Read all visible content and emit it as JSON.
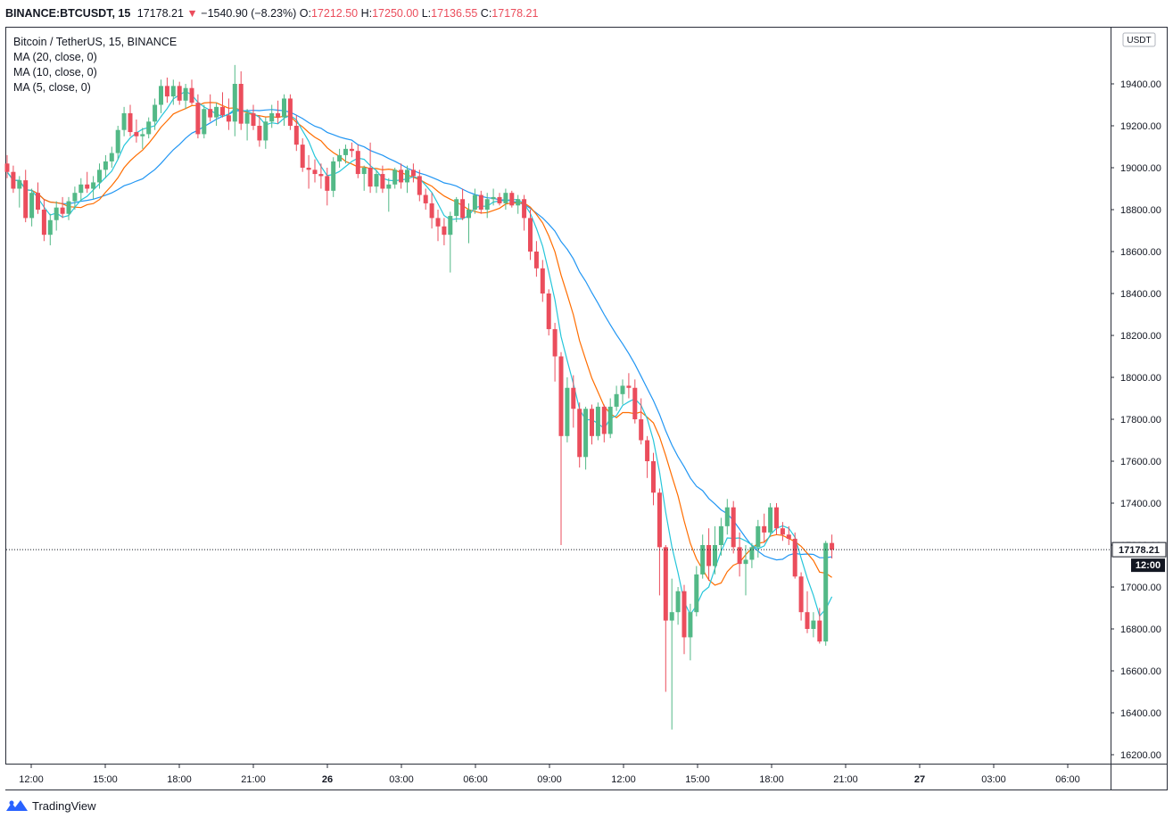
{
  "header": {
    "symbol": "BINANCE:BTCUSDT, 15",
    "last": "17178.21",
    "arrow": "▼",
    "change": "−1540.90 (−8.23%)",
    "o_label": "O:",
    "o_value": "17212.50",
    "h_label": "H:",
    "h_value": "17250.00",
    "l_label": "L:",
    "l_value": "17136.55",
    "c_label": "C:",
    "c_value": "17178.21"
  },
  "legend": {
    "title": "Bitcoin / TetherUS, 15, BINANCE",
    "ma20": "MA (20, close, 0)",
    "ma10": "MA (10, close, 0)",
    "ma5": "MA (5, close, 0)"
  },
  "axis": {
    "currency": "USDT",
    "price_tag": "17178.21",
    "time_tag": "12:00"
  },
  "colors": {
    "up": "#53b987",
    "down": "#eb4d5c",
    "ma20": "#2196f3",
    "ma10": "#ff6d00",
    "ma5": "#26c6da"
  },
  "footer": {
    "brand": "TradingView"
  },
  "chart_data": {
    "type": "candlestick",
    "title": "Bitcoin / TetherUS, 15, BINANCE",
    "interval": "15",
    "ylim": [
      16200,
      20000
    ],
    "y_ticks": [
      16200,
      16400,
      16600,
      16800,
      17000,
      17200,
      17400,
      17600,
      17800,
      18000,
      18200,
      18400,
      18600,
      18800,
      19000,
      19200,
      19400
    ],
    "y_tick_labels": [
      "16200.00",
      "16400.00",
      "16600.00",
      "16800.00",
      "17000.00",
      "17200.00",
      "17400.00",
      "17600.00",
      "17800.00",
      "18000.00",
      "18200.00",
      "18400.00",
      "18600.00",
      "18800.00",
      "19000.00",
      "19200.00",
      "19400.00"
    ],
    "x_ticks": [
      "12:00",
      "15:00",
      "18:00",
      "21:00",
      "26",
      "03:00",
      "06:00",
      "09:00",
      "12:00",
      "15:00",
      "18:00",
      "21:00",
      "27",
      "03:00",
      "06:00"
    ],
    "last_price": 17178.21,
    "grid": false,
    "ohlc": [
      [
        19020,
        19060,
        18950,
        18980
      ],
      [
        18980,
        19010,
        18880,
        18900
      ],
      [
        18900,
        18960,
        18810,
        18940
      ],
      [
        18940,
        18990,
        18740,
        18760
      ],
      [
        18760,
        18900,
        18720,
        18880
      ],
      [
        18880,
        18930,
        18780,
        18800
      ],
      [
        18800,
        18850,
        18650,
        18680
      ],
      [
        18680,
        18780,
        18630,
        18750
      ],
      [
        18750,
        18840,
        18700,
        18810
      ],
      [
        18810,
        18860,
        18760,
        18780
      ],
      [
        18780,
        18860,
        18750,
        18840
      ],
      [
        18840,
        18910,
        18800,
        18880
      ],
      [
        18880,
        18950,
        18840,
        18920
      ],
      [
        18920,
        18980,
        18880,
        18900
      ],
      [
        18900,
        18960,
        18850,
        18930
      ],
      [
        18930,
        19020,
        18900,
        18990
      ],
      [
        18990,
        19060,
        18950,
        19030
      ],
      [
        19030,
        19100,
        19000,
        19070
      ],
      [
        19070,
        19200,
        19040,
        19180
      ],
      [
        19180,
        19290,
        19150,
        19260
      ],
      [
        19260,
        19300,
        19150,
        19170
      ],
      [
        19170,
        19230,
        19120,
        19150
      ],
      [
        19150,
        19190,
        19090,
        19160
      ],
      [
        19160,
        19240,
        19140,
        19220
      ],
      [
        19220,
        19330,
        19180,
        19300
      ],
      [
        19300,
        19420,
        19260,
        19390
      ],
      [
        19390,
        19430,
        19310,
        19340
      ],
      [
        19340,
        19420,
        19300,
        19390
      ],
      [
        19390,
        19410,
        19300,
        19320
      ],
      [
        19320,
        19400,
        19280,
        19380
      ],
      [
        19380,
        19420,
        19300,
        19310
      ],
      [
        19310,
        19350,
        19140,
        19160
      ],
      [
        19160,
        19300,
        19140,
        19280
      ],
      [
        19280,
        19350,
        19220,
        19240
      ],
      [
        19240,
        19310,
        19200,
        19290
      ],
      [
        19290,
        19360,
        19240,
        19250
      ],
      [
        19250,
        19330,
        19180,
        19220
      ],
      [
        19220,
        19490,
        19150,
        19400
      ],
      [
        19400,
        19460,
        19180,
        19210
      ],
      [
        19210,
        19280,
        19130,
        19260
      ],
      [
        19260,
        19300,
        19180,
        19200
      ],
      [
        19200,
        19250,
        19100,
        19130
      ],
      [
        19130,
        19240,
        19090,
        19220
      ],
      [
        19220,
        19300,
        19190,
        19260
      ],
      [
        19260,
        19320,
        19210,
        19240
      ],
      [
        19240,
        19350,
        19200,
        19330
      ],
      [
        19330,
        19350,
        19180,
        19200
      ],
      [
        19200,
        19250,
        19080,
        19110
      ],
      [
        19110,
        19140,
        18980,
        19000
      ],
      [
        19000,
        19060,
        18900,
        18990
      ],
      [
        18990,
        19040,
        18930,
        18970
      ],
      [
        18970,
        19020,
        18900,
        18960
      ],
      [
        18960,
        19000,
        18820,
        18890
      ],
      [
        18890,
        19050,
        18860,
        19030
      ],
      [
        19030,
        19090,
        19000,
        19060
      ],
      [
        19060,
        19110,
        19020,
        19090
      ],
      [
        19090,
        19120,
        19050,
        19080
      ],
      [
        19080,
        19110,
        18950,
        18970
      ],
      [
        18970,
        19010,
        18890,
        19000
      ],
      [
        19000,
        19120,
        18880,
        18910
      ],
      [
        18910,
        18990,
        18880,
        18970
      ],
      [
        18970,
        19010,
        18880,
        18900
      ],
      [
        18900,
        18950,
        18790,
        18920
      ],
      [
        18920,
        19000,
        18900,
        18990
      ],
      [
        18990,
        19020,
        18900,
        18930
      ],
      [
        18930,
        19010,
        18880,
        18990
      ],
      [
        18990,
        19020,
        18930,
        18960
      ],
      [
        18960,
        18990,
        18840,
        18870
      ],
      [
        18870,
        18900,
        18800,
        18830
      ],
      [
        18830,
        18880,
        18710,
        18760
      ],
      [
        18760,
        18800,
        18650,
        18720
      ],
      [
        18720,
        18760,
        18630,
        18680
      ],
      [
        18680,
        18790,
        18500,
        18770
      ],
      [
        18770,
        18860,
        18740,
        18850
      ],
      [
        18850,
        18900,
        18750,
        18760
      ],
      [
        18760,
        18830,
        18640,
        18800
      ],
      [
        18800,
        18900,
        18780,
        18870
      ],
      [
        18870,
        18890,
        18780,
        18800
      ],
      [
        18800,
        18880,
        18760,
        18850
      ],
      [
        18850,
        18900,
        18820,
        18860
      ],
      [
        18860,
        18880,
        18820,
        18830
      ],
      [
        18830,
        18900,
        18800,
        18880
      ],
      [
        18880,
        18890,
        18810,
        18820
      ],
      [
        18820,
        18870,
        18780,
        18850
      ],
      [
        18850,
        18870,
        18700,
        18760
      ],
      [
        18760,
        18800,
        18560,
        18600
      ],
      [
        18600,
        18650,
        18480,
        18520
      ],
      [
        18520,
        18560,
        18360,
        18400
      ],
      [
        18400,
        18420,
        18200,
        18230
      ],
      [
        18230,
        18260,
        17980,
        18100
      ],
      [
        18100,
        18120,
        17200,
        17720
      ],
      [
        17720,
        18000,
        17690,
        17950
      ],
      [
        17950,
        18010,
        17760,
        17850
      ],
      [
        17850,
        17880,
        17570,
        17620
      ],
      [
        17620,
        17860,
        17560,
        17850
      ],
      [
        17850,
        17870,
        17680,
        17720
      ],
      [
        17720,
        17880,
        17700,
        17860
      ],
      [
        17860,
        17870,
        17690,
        17730
      ],
      [
        17730,
        17900,
        17710,
        17860
      ],
      [
        17860,
        17960,
        17840,
        17920
      ],
      [
        17920,
        17990,
        17870,
        17960
      ],
      [
        17960,
        18020,
        17900,
        17950
      ],
      [
        17950,
        17990,
        17780,
        17800
      ],
      [
        17800,
        17900,
        17680,
        17700
      ],
      [
        17700,
        17720,
        17520,
        17600
      ],
      [
        17600,
        17640,
        17390,
        17450
      ],
      [
        17450,
        17470,
        16960,
        17190
      ],
      [
        17190,
        17200,
        16500,
        16840
      ],
      [
        16840,
        17040,
        16320,
        16880
      ],
      [
        16880,
        17000,
        16820,
        16980
      ],
      [
        16980,
        17010,
        16680,
        16760
      ],
      [
        16760,
        16920,
        16650,
        16880
      ],
      [
        16880,
        17100,
        16860,
        17060
      ],
      [
        17060,
        17250,
        17040,
        17200
      ],
      [
        17200,
        17280,
        17030,
        17100
      ],
      [
        17100,
        17290,
        17060,
        17200
      ],
      [
        17200,
        17330,
        17150,
        17290
      ],
      [
        17290,
        17420,
        17250,
        17380
      ],
      [
        17380,
        17410,
        17160,
        17190
      ],
      [
        17190,
        17260,
        17050,
        17110
      ],
      [
        17110,
        17200,
        16960,
        17130
      ],
      [
        17130,
        17210,
        17090,
        17190
      ],
      [
        17190,
        17320,
        17140,
        17290
      ],
      [
        17290,
        17350,
        17210,
        17260
      ],
      [
        17260,
        17400,
        17240,
        17380
      ],
      [
        17380,
        17400,
        17250,
        17280
      ],
      [
        17280,
        17310,
        17220,
        17250
      ],
      [
        17250,
        17290,
        17200,
        17230
      ],
      [
        17230,
        17260,
        17040,
        17050
      ],
      [
        17050,
        17070,
        16840,
        16880
      ],
      [
        16880,
        16980,
        16780,
        16800
      ],
      [
        16800,
        16880,
        16760,
        16840
      ],
      [
        16840,
        16900,
        16730,
        16740
      ],
      [
        16740,
        17220,
        16720,
        17210
      ],
      [
        17210,
        17250,
        17136,
        17178
      ]
    ]
  }
}
